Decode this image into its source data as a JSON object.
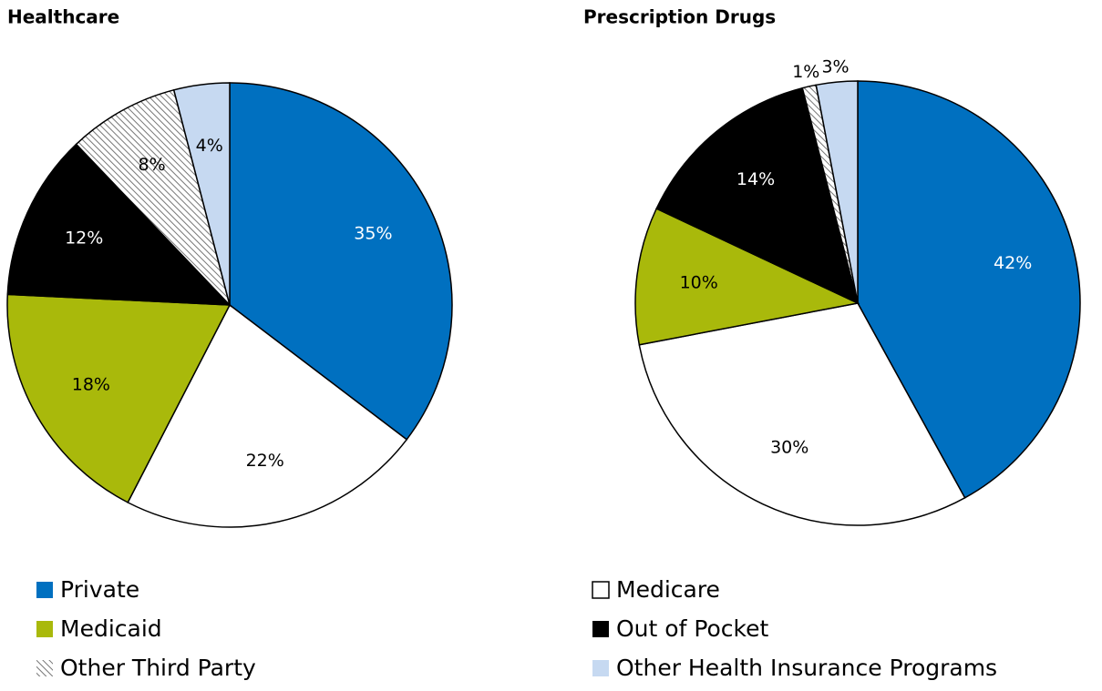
{
  "chart_data": [
    {
      "type": "pie",
      "title": "Healthcare",
      "categories": [
        "Private",
        "Medicare",
        "Medicaid",
        "Out of Pocket",
        "Other Third Party",
        "Other Health Insurance Programs"
      ],
      "values": [
        35,
        22,
        18,
        12,
        8,
        4
      ],
      "value_labels": [
        "35%",
        "22%",
        "18%",
        "12%",
        "8%",
        "4%"
      ],
      "colors": [
        "#0070c0",
        "#ffffff",
        "#a9b90b",
        "#000000",
        "#ffffff",
        "#c6d9f1"
      ],
      "hatch": [
        false,
        false,
        false,
        false,
        true,
        false
      ]
    },
    {
      "type": "pie",
      "title": "Prescription Drugs",
      "categories": [
        "Private",
        "Medicare",
        "Medicaid",
        "Out of Pocket",
        "Other Third Party",
        "Other Health Insurance Programs"
      ],
      "values": [
        42,
        30,
        10,
        14,
        1,
        3
      ],
      "value_labels": [
        "42%",
        "30%",
        "10%",
        "14%",
        "1%",
        "3%"
      ],
      "colors": [
        "#0070c0",
        "#ffffff",
        "#a9b90b",
        "#000000",
        "#ffffff",
        "#c6d9f1"
      ],
      "hatch": [
        false,
        false,
        false,
        false,
        true,
        false
      ]
    }
  ]
}
